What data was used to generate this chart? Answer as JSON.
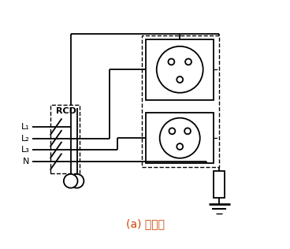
{
  "title": "(a) 四极式",
  "title_color": "#cc4400",
  "bg_color": "#ffffff",
  "line_color": "#000000",
  "fig_width": 3.68,
  "fig_height": 3.16,
  "labels": [
    "L₁",
    "L₂",
    "L₃",
    "N"
  ],
  "rcd_label": "RCD",
  "lw": 1.3
}
